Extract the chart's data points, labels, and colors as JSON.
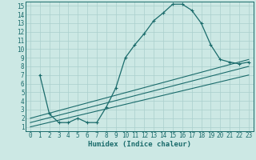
{
  "xlabel": "Humidex (Indice chaleur)",
  "xlim": [
    -0.5,
    23.5
  ],
  "ylim": [
    0.5,
    15.5
  ],
  "xticks": [
    0,
    1,
    2,
    3,
    4,
    5,
    6,
    7,
    8,
    9,
    10,
    11,
    12,
    13,
    14,
    15,
    16,
    17,
    18,
    19,
    20,
    21,
    22,
    23
  ],
  "yticks": [
    1,
    2,
    3,
    4,
    5,
    6,
    7,
    8,
    9,
    10,
    11,
    12,
    13,
    14,
    15
  ],
  "bg_color": "#cce8e4",
  "grid_color": "#aacfcc",
  "line_color": "#1a6b6b",
  "curve1_x": [
    1,
    2,
    3,
    4,
    5,
    6,
    7,
    8,
    9,
    10,
    11,
    12,
    13,
    14,
    15,
    16,
    17,
    18,
    19,
    20,
    21,
    22,
    23
  ],
  "curve1_y": [
    7,
    2.5,
    1.5,
    1.5,
    2.0,
    1.5,
    1.5,
    3.3,
    5.5,
    9.0,
    10.5,
    11.8,
    13.3,
    14.2,
    15.2,
    15.2,
    14.5,
    13.0,
    10.5,
    8.8,
    8.5,
    8.3,
    8.5
  ],
  "line2_x": [
    0,
    23
  ],
  "line2_y": [
    1.0,
    7.0
  ],
  "line3_x": [
    0,
    23
  ],
  "line3_y": [
    1.5,
    8.0
  ],
  "line4_x": [
    0,
    23
  ],
  "line4_y": [
    2.0,
    8.8
  ],
  "tick_fontsize": 5.5,
  "xlabel_fontsize": 6.5
}
